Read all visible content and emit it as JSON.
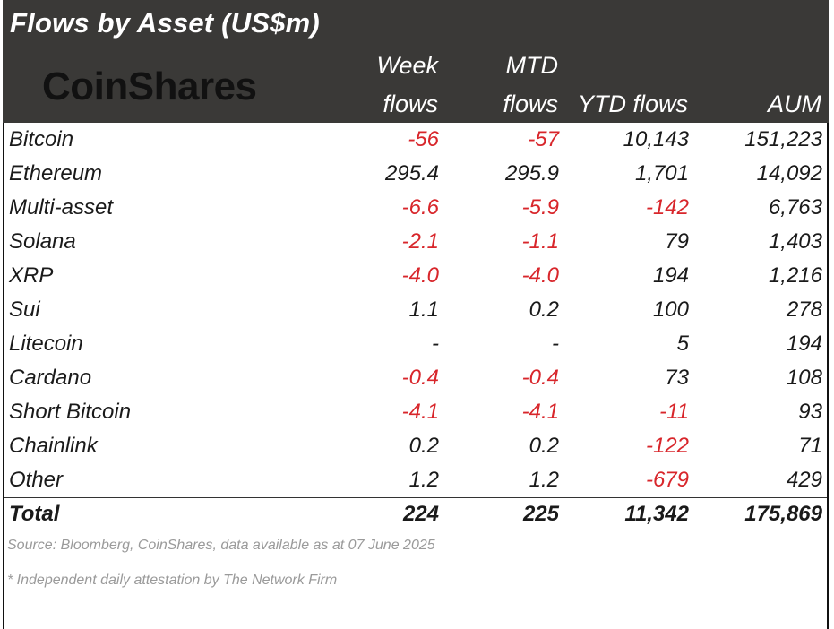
{
  "title": "Flows by Asset (US$m)",
  "brand": "CoinShares",
  "columns": [
    {
      "line1": "Week",
      "line2": "flows"
    },
    {
      "line1": "MTD",
      "line2": "flows"
    },
    {
      "line1": "",
      "line2": "YTD flows"
    },
    {
      "line1": "",
      "line2": "AUM"
    }
  ],
  "colors": {
    "negative": "#d8262b",
    "header_bg": "#3a3937"
  },
  "chart_data": {
    "type": "table",
    "title": "Flows by Asset (US$m)",
    "headers": [
      "",
      "Week flows",
      "MTD flows",
      "YTD flows",
      "AUM"
    ],
    "rows": [
      {
        "asset": "Bitcoin",
        "week": "-56",
        "mtd": "-57",
        "ytd": "10,143",
        "aum": "151,223"
      },
      {
        "asset": "Ethereum",
        "week": "295.4",
        "mtd": "295.9",
        "ytd": "1,701",
        "aum": "14,092"
      },
      {
        "asset": "Multi-asset",
        "week": "-6.6",
        "mtd": "-5.9",
        "ytd": "-142",
        "aum": "6,763"
      },
      {
        "asset": "Solana",
        "week": "-2.1",
        "mtd": "-1.1",
        "ytd": "79",
        "aum": "1,403"
      },
      {
        "asset": "XRP",
        "week": "-4.0",
        "mtd": "-4.0",
        "ytd": "194",
        "aum": "1,216"
      },
      {
        "asset": "Sui",
        "week": "1.1",
        "mtd": "0.2",
        "ytd": "100",
        "aum": "278"
      },
      {
        "asset": "Litecoin",
        "week": "-",
        "mtd": "-",
        "ytd": "5",
        "aum": "194"
      },
      {
        "asset": "Cardano",
        "week": "-0.4",
        "mtd": "-0.4",
        "ytd": "73",
        "aum": "108"
      },
      {
        "asset": "Short Bitcoin",
        "week": "-4.1",
        "mtd": "-4.1",
        "ytd": "-11",
        "aum": "93"
      },
      {
        "asset": "Chainlink",
        "week": "0.2",
        "mtd": "0.2",
        "ytd": "-122",
        "aum": "71"
      },
      {
        "asset": "Other",
        "week": "1.2",
        "mtd": "1.2",
        "ytd": "-679",
        "aum": "429"
      }
    ],
    "total": {
      "asset": "Total",
      "week": "224",
      "mtd": "225",
      "ytd": "11,342",
      "aum": "175,869"
    }
  },
  "footnotes": [
    "Source: Bloomberg, CoinShares, data available as at 07 June 2025",
    "* Independent daily attestation by The Network Firm"
  ]
}
